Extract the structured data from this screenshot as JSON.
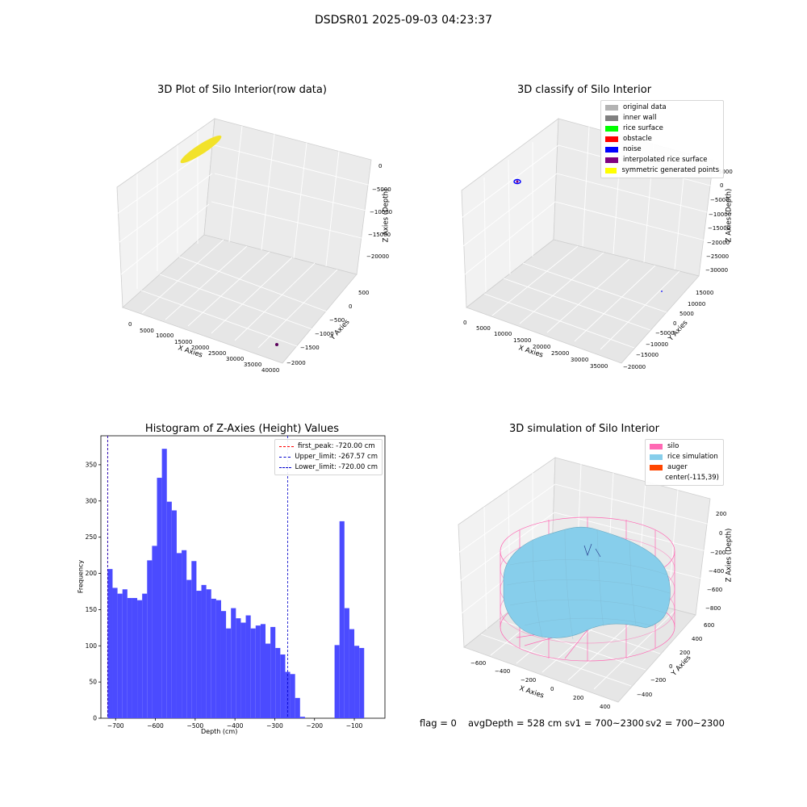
{
  "suptitle": "DSDSR01 2025-09-03 04:23:37",
  "footer": {
    "flag": "flag = 0",
    "avg_depth": "avgDepth = 528 cm",
    "sv1": "sv1 = 700~2300",
    "sv2": "sv2 = 700~2300"
  },
  "colors": {
    "histogram_bar": "#4b4bff",
    "upper_lower_line": "#0000cc",
    "first_peak_line": "#ff0000",
    "silo": "#ff69b4",
    "rice_simulation": "#87ceeb",
    "auger": "#ff4500",
    "raw_data": "#f2e22a",
    "raw_data_point": "#5a005a"
  },
  "chart_data": [
    {
      "type": "scatter",
      "title": "3D Plot of Silo Interior(row data)",
      "xlabel": "X Axies",
      "ylabel": "Y Axies",
      "zlabel": "Z Axies (Depth)",
      "x_ticks": [
        "0",
        "5000",
        "10000",
        "15000",
        "20000",
        "25000",
        "30000",
        "35000",
        "40000"
      ],
      "y_ticks": [
        "500",
        "0",
        "−500",
        "−1000",
        "−1500",
        "−2000"
      ],
      "z_ticks": [
        "0",
        "−5000",
        "−10000",
        "−15000",
        "−20000"
      ],
      "xlim": [
        0,
        40000
      ],
      "ylim": [
        -2000,
        500
      ],
      "zlim": [
        -20000,
        0
      ]
    },
    {
      "type": "scatter",
      "title": "3D classify of Silo Interior",
      "xlabel": "X Axies",
      "ylabel": "Y Axies",
      "zlabel": "Z Axies (Depth)",
      "x_ticks": [
        "0",
        "5000",
        "10000",
        "15000",
        "20000",
        "25000",
        "30000",
        "35000"
      ],
      "y_ticks": [
        "15000",
        "10000",
        "5000",
        "0",
        "−5000",
        "−10000",
        "−15000",
        "−20000"
      ],
      "z_ticks": [
        "5000",
        "0",
        "−5000",
        "−10000",
        "−15000",
        "−20000",
        "−25000",
        "−30000"
      ],
      "legend": [
        {
          "label": "original data",
          "color": "#b3b3b3"
        },
        {
          "label": "inner wall",
          "color": "#808080"
        },
        {
          "label": "rice surface",
          "color": "#00ff00"
        },
        {
          "label": "obstacle",
          "color": "#ff0000"
        },
        {
          "label": "noise",
          "color": "#0000ff"
        },
        {
          "label": "interpolated rice surface",
          "color": "#800080"
        },
        {
          "label": "symmetric generated points",
          "color": "#ffff00"
        }
      ]
    },
    {
      "type": "bar",
      "title": "Histogram of Z-Axies (Height) Values",
      "xlabel": "Depth (cm)",
      "ylabel": "Frequency",
      "xlim": [
        -737,
        -23
      ],
      "ylim": [
        0,
        390
      ],
      "x_ticks": [
        -700,
        -600,
        -500,
        -400,
        -300,
        -200,
        -100
      ],
      "x_tick_labels": [
        "−700",
        "−600",
        "−500",
        "−400",
        "−300",
        "−200",
        "−100"
      ],
      "y_ticks": [
        0,
        50,
        100,
        150,
        200,
        250,
        300,
        350
      ],
      "bin_start": -720,
      "bin_width": 12.4,
      "values": [
        206,
        180,
        172,
        178,
        166,
        166,
        163,
        172,
        218,
        238,
        332,
        372,
        299,
        287,
        228,
        232,
        191,
        217,
        176,
        184,
        178,
        165,
        163,
        148,
        124,
        152,
        138,
        132,
        142,
        124,
        128,
        130,
        103,
        126,
        97,
        88,
        64,
        61,
        28,
        2,
        0,
        0,
        0,
        0,
        0,
        0,
        101,
        272,
        152,
        123,
        100,
        97
      ],
      "vlines": [
        {
          "x": -720,
          "label": "first_peak: -720.00 cm",
          "color": "#ff0000"
        },
        {
          "x": -267.57,
          "label": "Upper_limit: -267.57 cm",
          "color": "#0000cc"
        },
        {
          "x": -720,
          "label": "Lower_limit: -720.00 cm",
          "color": "#0000cc"
        }
      ]
    },
    {
      "type": "other",
      "title": "3D simulation of Silo Interior",
      "xlabel": "X Axies",
      "ylabel": "Y Axies",
      "zlabel": "Z Axies (Depth)",
      "x_ticks": [
        "−600",
        "−400",
        "−200",
        "0",
        "200",
        "400"
      ],
      "y_ticks": [
        "600",
        "400",
        "200",
        "0",
        "−200",
        "−400"
      ],
      "z_ticks": [
        "200",
        "0",
        "−200",
        "−400",
        "−600",
        "−800"
      ],
      "legend": [
        {
          "label": "silo",
          "color": "#ff69b4"
        },
        {
          "label": "rice simulation",
          "color": "#87ceeb"
        },
        {
          "label": "auger",
          "color": "#ff4500"
        },
        {
          "label": "center(-115,39)",
          "color": ""
        }
      ]
    }
  ]
}
